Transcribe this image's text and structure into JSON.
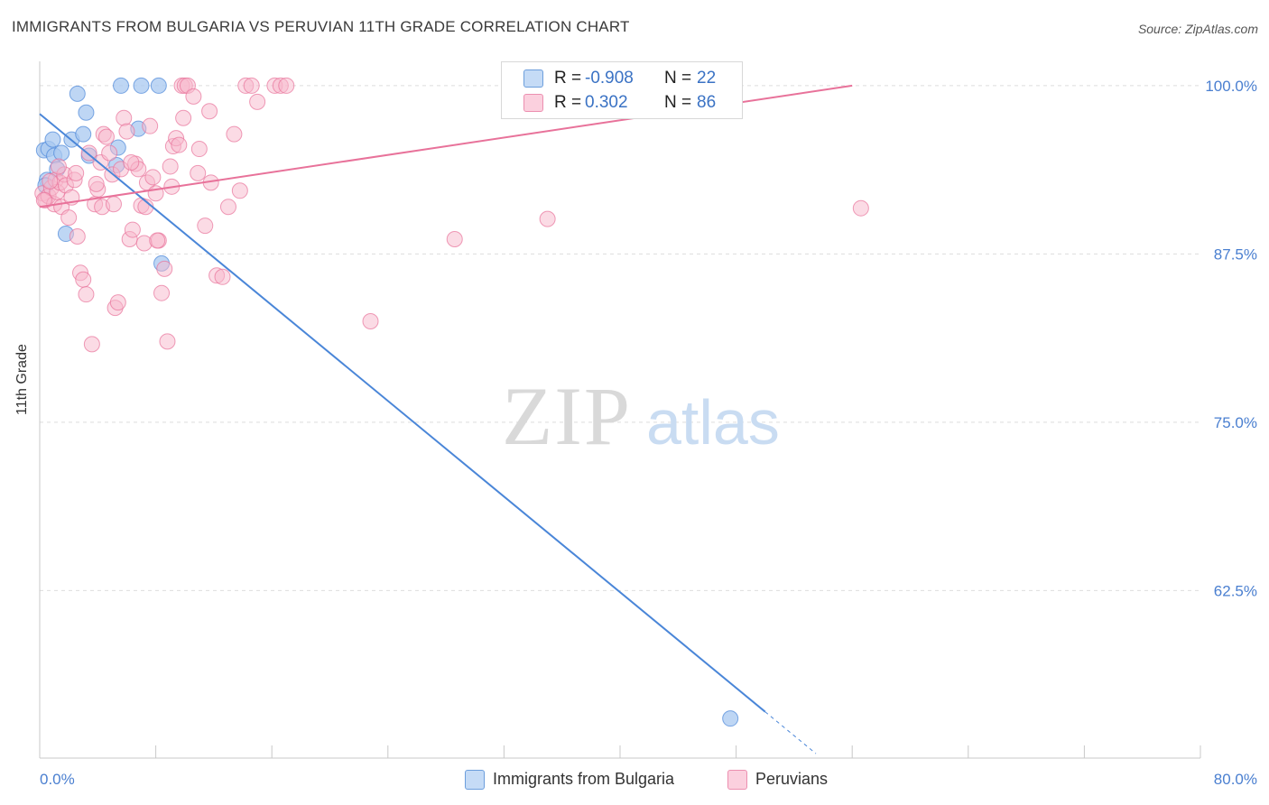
{
  "title": "IMMIGRANTS FROM BULGARIA VS PERUVIAN 11TH GRADE CORRELATION CHART",
  "source": "Source: ZipAtlas.com",
  "watermark": {
    "zip": "ZIP",
    "atlas": "atlas"
  },
  "legend_top": [
    {
      "r_label": "R =",
      "r_value": "-0.908",
      "n_label": "N =",
      "n_value": "22",
      "color": "#a8c8f0"
    },
    {
      "r_label": "R =",
      "r_value": "0.302",
      "n_label": "N =",
      "n_value": "86",
      "color": "#f7b8cc"
    }
  ],
  "legend_bottom": [
    {
      "label": "Immigrants from Bulgaria",
      "color": "#a8c8f0"
    },
    {
      "label": "Peruvians",
      "color": "#f7b8cc"
    }
  ],
  "chart_data": {
    "type": "scatter",
    "title": "IMMIGRANTS FROM BULGARIA VS PERUVIAN 11TH GRADE CORRELATION CHART",
    "xlabel": "",
    "ylabel": "11th Grade",
    "xlim": [
      0,
      80
    ],
    "ylim": [
      51,
      101
    ],
    "x_tick_labels": [
      "0.0%",
      "80.0%"
    ],
    "y_ticks": [
      62.5,
      75.0,
      87.5,
      100.0
    ],
    "y_tick_labels": [
      "62.5%",
      "75.0%",
      "87.5%",
      "100.0%"
    ],
    "grid": true,
    "legend_position": "top-center",
    "series": [
      {
        "name": "Immigrants from Bulgaria",
        "color": "#4a86d8",
        "fill": "#a8c8f0",
        "x": [
          0.3,
          0.5,
          0.6,
          0.9,
          1.0,
          1.2,
          1.5,
          1.8,
          2.2,
          2.6,
          3.0,
          3.2,
          3.4,
          5.3,
          5.4,
          5.6,
          6.8,
          7.0,
          8.2,
          8.4,
          47.6,
          0.4
        ],
        "y": [
          95.2,
          93.0,
          95.3,
          96.0,
          94.8,
          93.8,
          95.0,
          89.0,
          96.0,
          99.4,
          96.4,
          98.0,
          94.8,
          94.1,
          95.4,
          100.0,
          96.8,
          100.0,
          100.0,
          86.8,
          53.0,
          92.6
        ],
        "trend": {
          "x": [
            0,
            50
          ],
          "y": [
            97.9,
            53.5
          ],
          "dashed_to_x": 53.5
        }
      },
      {
        "name": "Peruvians",
        "color": "#e8729a",
        "fill": "#f7b8cc",
        "x": [
          0.2,
          0.4,
          0.6,
          0.8,
          1.0,
          1.1,
          1.2,
          1.4,
          1.5,
          1.7,
          1.8,
          2.0,
          2.2,
          2.4,
          2.6,
          2.8,
          3.0,
          3.2,
          3.4,
          3.6,
          3.8,
          4.0,
          4.2,
          4.4,
          4.6,
          4.8,
          5.0,
          5.2,
          5.4,
          5.6,
          5.8,
          6.0,
          6.2,
          6.4,
          6.6,
          6.8,
          7.0,
          7.2,
          7.4,
          7.6,
          7.8,
          8.0,
          8.2,
          8.4,
          8.6,
          8.8,
          9.0,
          9.2,
          9.4,
          9.6,
          9.8,
          10.0,
          10.2,
          10.6,
          11.0,
          11.4,
          11.8,
          12.2,
          12.6,
          13.0,
          13.4,
          13.8,
          14.2,
          14.6,
          15.0,
          16.2,
          16.6,
          17.0,
          22.8,
          28.6,
          35.0,
          56.6,
          0.3,
          0.7,
          1.3,
          2.5,
          3.9,
          4.3,
          5.1,
          6.3,
          7.3,
          8.1,
          9.1,
          9.9,
          10.9,
          11.7
        ],
        "y": [
          92.0,
          91.5,
          91.8,
          92.4,
          91.2,
          93.0,
          92.1,
          92.8,
          91.0,
          93.4,
          92.6,
          90.2,
          91.7,
          93.0,
          88.8,
          86.1,
          85.6,
          84.5,
          95.0,
          80.8,
          91.2,
          92.3,
          94.3,
          96.4,
          96.2,
          95.0,
          93.4,
          83.5,
          83.9,
          93.8,
          97.6,
          96.6,
          88.6,
          89.3,
          94.2,
          93.8,
          91.1,
          88.3,
          92.8,
          97.0,
          93.2,
          92.0,
          88.5,
          84.6,
          86.4,
          81.0,
          94.0,
          95.5,
          96.1,
          95.6,
          100.0,
          100.0,
          100.0,
          99.2,
          95.3,
          89.6,
          92.8,
          85.9,
          85.8,
          91.0,
          96.4,
          92.2,
          100.0,
          100.0,
          98.8,
          100.0,
          100.0,
          100.0,
          82.5,
          88.6,
          90.1,
          90.9,
          91.5,
          92.9,
          94.0,
          93.5,
          92.7,
          91.0,
          91.2,
          94.3,
          91.0,
          88.5,
          92.5,
          97.6,
          93.5,
          98.1
        ],
        "trend": {
          "x": [
            0,
            56
          ],
          "y": [
            91.0,
            100.0
          ]
        }
      }
    ]
  }
}
